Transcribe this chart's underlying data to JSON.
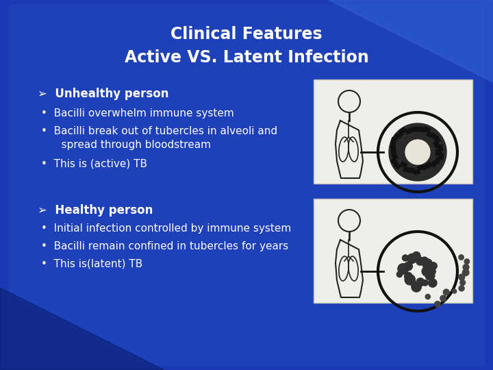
{
  "title_line1": "Clinical Features",
  "title_line2": "Active VS. Latent Infection",
  "title_color": "#FFFFFF",
  "title_fontsize": 17,
  "slide_bg": "#1A3AB5",
  "panel_bg": "#1A3AB5",
  "section1_header": "➤  Unhealthy person",
  "section1_bullets": [
    "Bacilli overwhelm immune system",
    "Bacilli break out of tubercles in alveoli and\n      spread through bloodstream",
    "This is (active) TB"
  ],
  "section2_header": "➤  Healthy person",
  "section2_bullets": [
    "Initial infection controlled by immune system",
    "Bacilli remain confined in tubercles for years",
    "This is(latent) TB"
  ],
  "text_color": "#FFFFFF",
  "bullet_fontsize": 11,
  "header_fontsize": 12,
  "img_bg": "#F0EEE8"
}
